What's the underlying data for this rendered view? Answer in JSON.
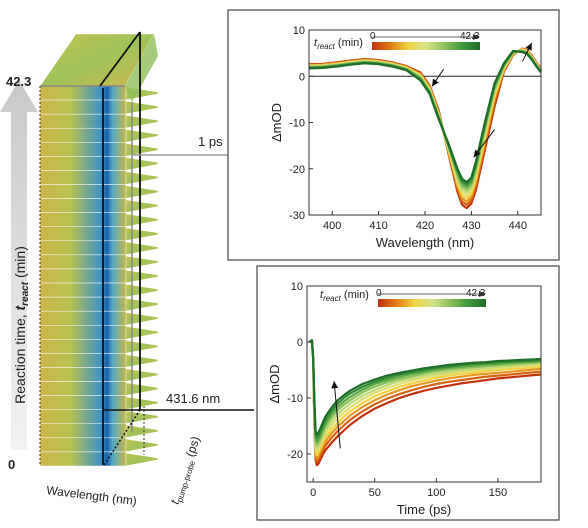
{
  "stack": {
    "ylabel_main": "Reaction time, ",
    "ylabel_var": "t",
    "ylabel_sub": "react",
    "ylabel_unit": " (min)",
    "ytick_top": "42.3",
    "ytick_bottom": "0",
    "xlabel": "Wavelength (nm)",
    "zlabel_var": "t",
    "zlabel_sub": "pump-probe",
    "zlabel_unit": " (ps)",
    "slice_label_time": "1 ps",
    "slice_label_wavelength": "431.6 nm",
    "n_frames": 27
  },
  "legend": {
    "var": "t",
    "sub": "react",
    "unit": " (min)",
    "min": "0",
    "max": "42.3",
    "colors": [
      "#c0310a",
      "#e07a12",
      "#f2d23e",
      "#d6e48a",
      "#8cc25a",
      "#3f9a3a",
      "#1f6e2a"
    ]
  },
  "chart_data": [
    {
      "type": "line",
      "title": "",
      "xlabel": "Wavelength (nm)",
      "ylabel": "ΔmOD",
      "xlim": [
        395,
        445
      ],
      "ylim": [
        -30,
        10
      ],
      "xticks": [
        400,
        410,
        420,
        430,
        440
      ],
      "yticks": [
        10,
        0,
        -10,
        -20,
        -30
      ],
      "zero_line": true,
      "series_param": "t_react (min)",
      "series_range": [
        0,
        42.3
      ],
      "n_series": 10,
      "trend_arrows": [
        "up near 422 nm",
        "up near 430 nm",
        "down near 441 nm"
      ],
      "x": [
        395,
        398,
        401,
        404,
        407,
        410,
        413,
        416,
        419,
        421,
        423,
        425,
        427,
        428,
        429,
        430,
        431,
        433,
        435,
        437,
        439,
        441,
        442,
        443,
        444,
        445
      ],
      "series": [
        {
          "values": [
            2.6,
            2.7,
            3.0,
            3.4,
            3.7,
            3.5,
            3.0,
            2.2,
            0.8,
            -2.0,
            -7.5,
            -16.5,
            -25.0,
            -27.8,
            -28.5,
            -27.5,
            -24.5,
            -15.5,
            -6.5,
            1.0,
            4.6,
            6.0,
            5.7,
            4.5,
            3.0,
            1.7
          ]
        },
        {
          "values": [
            2.5,
            2.6,
            2.9,
            3.3,
            3.6,
            3.4,
            2.9,
            2.1,
            0.6,
            -2.2,
            -7.8,
            -16.3,
            -24.4,
            -27.1,
            -27.8,
            -26.8,
            -23.6,
            -14.6,
            -5.6,
            1.2,
            4.7,
            6.0,
            5.6,
            4.4,
            2.9,
            1.6
          ]
        },
        {
          "values": [
            2.4,
            2.5,
            2.8,
            3.2,
            3.5,
            3.3,
            2.8,
            2.0,
            0.4,
            -2.4,
            -8.0,
            -16.0,
            -23.8,
            -26.4,
            -27.1,
            -26.1,
            -22.8,
            -13.8,
            -4.8,
            1.4,
            4.8,
            5.9,
            5.5,
            4.3,
            2.8,
            1.5
          ]
        },
        {
          "values": [
            2.3,
            2.4,
            2.7,
            3.1,
            3.4,
            3.2,
            2.7,
            1.9,
            0.3,
            -2.6,
            -8.2,
            -15.8,
            -23.2,
            -25.7,
            -26.4,
            -25.4,
            -22.0,
            -13.0,
            -4.2,
            1.6,
            4.9,
            5.8,
            5.4,
            4.2,
            2.7,
            1.4
          ]
        },
        {
          "values": [
            2.2,
            2.3,
            2.6,
            3.0,
            3.3,
            3.1,
            2.6,
            1.8,
            0.1,
            -2.8,
            -8.4,
            -15.5,
            -22.6,
            -25.0,
            -25.7,
            -24.7,
            -21.2,
            -12.3,
            -3.6,
            1.8,
            5.0,
            5.7,
            5.3,
            4.1,
            2.6,
            1.3
          ]
        },
        {
          "values": [
            2.1,
            2.2,
            2.5,
            2.9,
            3.2,
            3.0,
            2.5,
            1.7,
            -0.1,
            -3.0,
            -8.6,
            -15.2,
            -22.0,
            -24.4,
            -25.1,
            -24.1,
            -20.6,
            -11.7,
            -3.1,
            2.0,
            5.1,
            5.6,
            5.2,
            4.0,
            2.5,
            1.2
          ]
        },
        {
          "values": [
            2.0,
            2.1,
            2.4,
            2.8,
            3.1,
            2.9,
            2.4,
            1.6,
            -0.3,
            -3.2,
            -8.8,
            -15.0,
            -21.4,
            -23.8,
            -24.5,
            -23.5,
            -20.0,
            -11.1,
            -2.6,
            2.2,
            5.2,
            5.5,
            5.1,
            3.9,
            2.4,
            1.1
          ]
        },
        {
          "values": [
            1.9,
            2.0,
            2.3,
            2.7,
            3.0,
            2.8,
            2.3,
            1.5,
            -0.5,
            -3.4,
            -9.0,
            -14.8,
            -20.9,
            -23.2,
            -23.9,
            -22.9,
            -19.4,
            -10.5,
            -2.2,
            2.4,
            5.3,
            5.4,
            5.0,
            3.8,
            2.3,
            1.0
          ]
        },
        {
          "values": [
            1.8,
            1.9,
            2.2,
            2.6,
            2.9,
            2.7,
            2.2,
            1.4,
            -0.7,
            -3.6,
            -9.2,
            -14.6,
            -20.4,
            -22.7,
            -23.4,
            -22.4,
            -18.9,
            -10.0,
            -1.8,
            2.6,
            5.4,
            5.3,
            4.9,
            3.7,
            2.2,
            0.9
          ]
        },
        {
          "values": [
            1.7,
            1.8,
            2.1,
            2.5,
            2.8,
            2.6,
            2.1,
            1.3,
            -0.9,
            -3.8,
            -9.4,
            -14.4,
            -20.0,
            -22.2,
            -22.9,
            -21.9,
            -18.4,
            -9.6,
            -1.5,
            2.8,
            5.5,
            5.2,
            4.8,
            3.6,
            2.1,
            0.8
          ]
        }
      ]
    },
    {
      "type": "line",
      "title": "",
      "xlabel": "Time (ps)",
      "ylabel": "ΔmOD",
      "xlim": [
        -5,
        185
      ],
      "ylim": [
        -25,
        10
      ],
      "xticks": [
        0,
        50,
        100,
        150
      ],
      "yticks": [
        10,
        0,
        -10,
        -20
      ],
      "series_param": "t_react (min)",
      "series_range": [
        0,
        42.3
      ],
      "n_series": 10,
      "trend_arrows": [
        "up near 20 ps"
      ],
      "x": [
        -3,
        -1,
        0,
        1,
        2,
        3,
        4,
        6,
        8,
        10,
        15,
        20,
        25,
        30,
        40,
        50,
        60,
        70,
        80,
        90,
        100,
        110,
        120,
        130,
        140,
        150,
        160,
        170,
        180,
        185
      ],
      "series": [
        {
          "values": [
            0,
            0.3,
            -3,
            -15,
            -21,
            -22,
            -21.8,
            -21,
            -20,
            -19.3,
            -18,
            -16.8,
            -15.8,
            -14.8,
            -13.2,
            -11.9,
            -10.9,
            -10.0,
            -9.3,
            -8.7,
            -8.2,
            -7.8,
            -7.4,
            -7.1,
            -6.8,
            -6.5,
            -6.3,
            -6.1,
            -5.9,
            -5.8
          ]
        },
        {
          "values": [
            0,
            0.3,
            -3,
            -14.5,
            -20.5,
            -21.4,
            -21.1,
            -20.3,
            -19.3,
            -18.5,
            -17.1,
            -15.9,
            -14.9,
            -13.9,
            -12.4,
            -11.1,
            -10.1,
            -9.3,
            -8.6,
            -8.0,
            -7.5,
            -7.1,
            -6.8,
            -6.5,
            -6.2,
            -6.0,
            -5.8,
            -5.6,
            -5.4,
            -5.3
          ]
        },
        {
          "values": [
            0,
            0.3,
            -3,
            -14,
            -20,
            -20.8,
            -20.5,
            -19.6,
            -18.6,
            -17.8,
            -16.3,
            -15.1,
            -14.1,
            -13.1,
            -11.6,
            -10.4,
            -9.4,
            -8.6,
            -7.9,
            -7.4,
            -6.9,
            -6.5,
            -6.2,
            -5.9,
            -5.7,
            -5.5,
            -5.3,
            -5.1,
            -4.9,
            -4.8
          ]
        },
        {
          "values": [
            0,
            0.3,
            -3,
            -13.5,
            -19.4,
            -20.2,
            -19.9,
            -19.0,
            -18.0,
            -17.1,
            -15.6,
            -14.4,
            -13.3,
            -12.4,
            -10.9,
            -9.7,
            -8.8,
            -8.0,
            -7.4,
            -6.9,
            -6.4,
            -6.0,
            -5.7,
            -5.5,
            -5.2,
            -5.0,
            -4.8,
            -4.7,
            -4.5,
            -4.4
          ]
        },
        {
          "values": [
            0,
            0.3,
            -3,
            -13,
            -18.8,
            -19.6,
            -19.3,
            -18.4,
            -17.3,
            -16.4,
            -14.9,
            -13.6,
            -12.6,
            -11.7,
            -10.2,
            -9.1,
            -8.2,
            -7.5,
            -6.9,
            -6.4,
            -6.0,
            -5.6,
            -5.3,
            -5.1,
            -4.9,
            -4.7,
            -4.5,
            -4.3,
            -4.2,
            -4.1
          ]
        },
        {
          "values": [
            0,
            0.3,
            -3,
            -12.5,
            -18.2,
            -19.0,
            -18.7,
            -17.8,
            -16.7,
            -15.8,
            -14.2,
            -12.9,
            -11.9,
            -11.0,
            -9.6,
            -8.6,
            -7.7,
            -7.0,
            -6.5,
            -6.0,
            -5.6,
            -5.3,
            -5.0,
            -4.8,
            -4.6,
            -4.4,
            -4.2,
            -4.1,
            -3.9,
            -3.8
          ]
        },
        {
          "values": [
            0,
            0.3,
            -3,
            -12,
            -17.6,
            -18.4,
            -18.1,
            -17.2,
            -16.1,
            -15.1,
            -13.5,
            -12.2,
            -11.2,
            -10.4,
            -9.0,
            -8.0,
            -7.2,
            -6.6,
            -6.1,
            -5.6,
            -5.2,
            -4.9,
            -4.7,
            -4.5,
            -4.3,
            -4.1,
            -4.0,
            -3.8,
            -3.7,
            -3.6
          ]
        },
        {
          "values": [
            0,
            0.3,
            -3,
            -11.5,
            -17.0,
            -17.8,
            -17.5,
            -16.6,
            -15.5,
            -14.5,
            -12.9,
            -11.6,
            -10.6,
            -9.8,
            -8.5,
            -7.5,
            -6.8,
            -6.2,
            -5.7,
            -5.3,
            -4.9,
            -4.6,
            -4.4,
            -4.2,
            -4.0,
            -3.9,
            -3.7,
            -3.6,
            -3.5,
            -3.4
          ]
        },
        {
          "values": [
            0,
            0.3,
            -3,
            -11,
            -16.4,
            -17.2,
            -16.9,
            -16.0,
            -14.9,
            -13.9,
            -12.3,
            -11.0,
            -10.0,
            -9.2,
            -8.0,
            -7.1,
            -6.4,
            -5.8,
            -5.4,
            -5.0,
            -4.6,
            -4.4,
            -4.1,
            -3.9,
            -3.8,
            -3.6,
            -3.5,
            -3.4,
            -3.3,
            -3.2
          ]
        },
        {
          "values": [
            0,
            0.3,
            -3,
            -10.5,
            -15.8,
            -16.6,
            -16.3,
            -15.4,
            -14.3,
            -13.3,
            -11.7,
            -10.4,
            -9.5,
            -8.7,
            -7.5,
            -6.7,
            -6.0,
            -5.5,
            -5.1,
            -4.7,
            -4.4,
            -4.1,
            -3.9,
            -3.7,
            -3.6,
            -3.4,
            -3.3,
            -3.2,
            -3.1,
            -3.0
          ]
        }
      ]
    }
  ]
}
